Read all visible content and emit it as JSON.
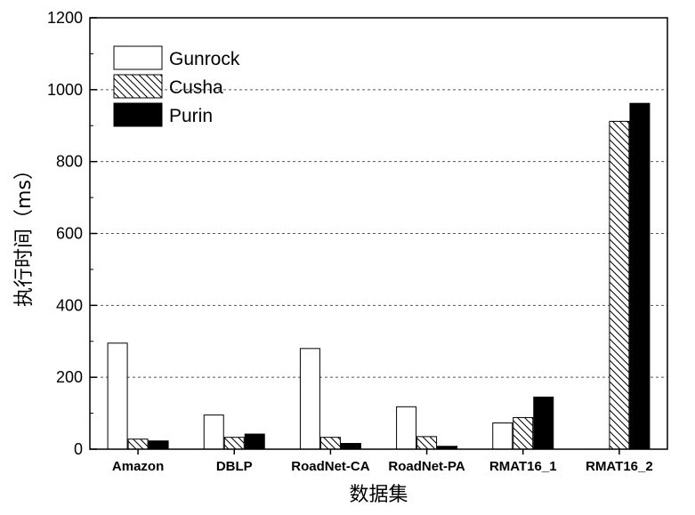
{
  "chart_data": {
    "type": "bar",
    "title": "",
    "xlabel": "数据集",
    "ylabel": "执行时间（ms）",
    "ylim": [
      0,
      1200
    ],
    "yticks": [
      0,
      200,
      400,
      600,
      800,
      1000,
      1200
    ],
    "grid": "horizontal-dashed",
    "legend_position": "top-left",
    "categories": [
      "Amazon",
      "DBLP",
      "RoadNet-CA",
      "RoadNet-PA",
      "RMAT16_1",
      "RMAT16_2"
    ],
    "series": [
      {
        "name": "Gunrock",
        "values": [
          295,
          95,
          280,
          118,
          73,
          0
        ],
        "fill": "#ffffff",
        "pattern": "none"
      },
      {
        "name": "Cusha",
        "values": [
          28,
          33,
          33,
          35,
          88,
          912
        ],
        "fill": "#ffffff",
        "pattern": "diagonal-hatch"
      },
      {
        "name": "Purin",
        "values": [
          23,
          42,
          16,
          8,
          145,
          962
        ],
        "fill": "#000000",
        "pattern": "solid"
      }
    ]
  }
}
